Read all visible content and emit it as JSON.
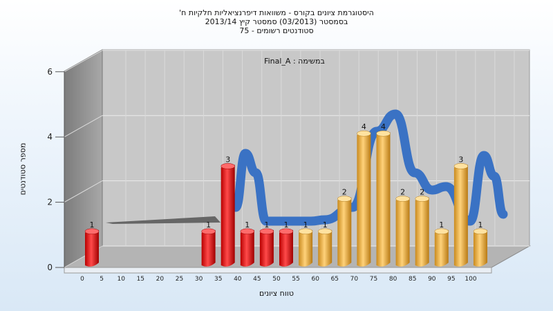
{
  "chart_data": {
    "type": "bar",
    "title": "היסטוגרמת ציונים בקורס - משוואות דיפרנציאליות חלקיות ח'",
    "subtitle_1": "בסמסטר  (03/2013)  סמסטר קיץ  2013/14",
    "subtitle_2": "סטודנטים רשומים - 75",
    "annotation": "במשימה : Final_A",
    "xlabel": "טווח ציונים",
    "ylabel": "מספר סטודנטים",
    "ylim": [
      0,
      6
    ],
    "yticks": [
      "0",
      "2",
      "4",
      "6"
    ],
    "categories": [
      "0",
      "5",
      "10",
      "15",
      "20",
      "25",
      "30",
      "35",
      "40",
      "45",
      "50",
      "55",
      "60",
      "65",
      "70",
      "75",
      "80",
      "85",
      "90",
      "95",
      "100"
    ],
    "values": [
      1,
      0,
      0,
      0,
      0,
      0,
      1,
      3,
      1,
      1,
      1,
      1,
      1,
      2,
      4,
      4,
      2,
      2,
      1,
      3,
      1
    ],
    "bar_colors": [
      "red",
      "red",
      "red",
      "red",
      "red",
      "red",
      "red",
      "red",
      "red",
      "red",
      "red",
      "orange",
      "orange",
      "orange",
      "orange",
      "orange",
      "orange",
      "orange",
      "orange",
      "orange",
      "orange"
    ],
    "colors": {
      "red": "#e01818",
      "orange": "#f0b040",
      "curve": "#3a72c4",
      "wall": "#888888"
    },
    "grid": true
  }
}
